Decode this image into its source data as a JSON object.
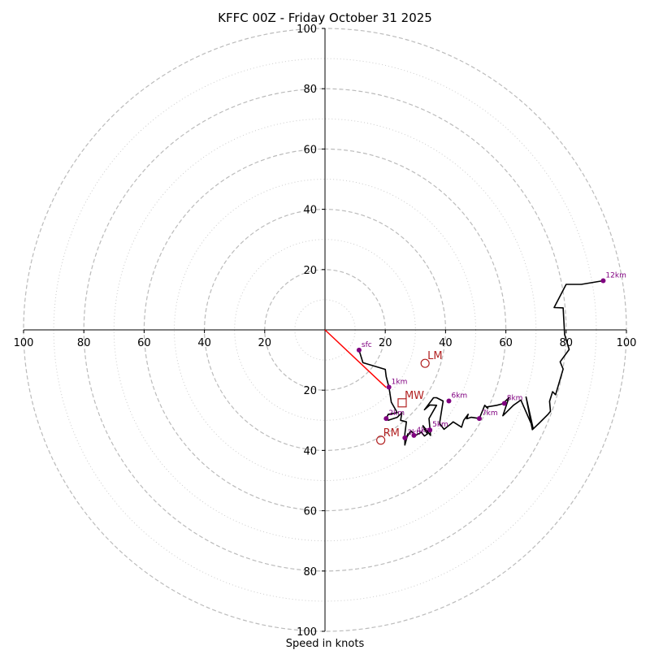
{
  "chart_data": {
    "type": "line",
    "title": "KFFC 00Z - Friday October 31 2025",
    "xlabel": "Speed in knots",
    "ylabel": "",
    "xlim": [
      -100,
      100
    ],
    "ylim": [
      -100,
      100
    ],
    "grid": true,
    "ring_major": [
      20,
      40,
      60,
      80,
      100
    ],
    "ring_minor": [
      10,
      30,
      50,
      70,
      90
    ],
    "x_ticks": [
      "100",
      "80",
      "60",
      "40",
      "20",
      "20",
      "40",
      "60",
      "80",
      "100"
    ],
    "x_tick_values": [
      -100,
      -80,
      -60,
      -40,
      -20,
      20,
      40,
      60,
      80,
      100
    ],
    "y_ticks": [
      "100",
      "80",
      "60",
      "40",
      "20",
      "20",
      "40",
      "60",
      "80",
      "100"
    ],
    "y_tick_values": [
      100,
      80,
      60,
      40,
      20,
      -20,
      -40,
      -60,
      -80,
      -100
    ],
    "colors": {
      "trace": "#000000",
      "height_marker": "#800080",
      "motion": "#b22222",
      "shear_line": "#ff0000",
      "grid": "#bbbbbb"
    },
    "series": [
      {
        "name": "hodograph",
        "x": [
          11.3,
          12.6,
          20,
          20.3,
          21.2,
          21.6,
          22,
          24,
          21,
          20.3,
          21,
          24,
          25.5,
          25.1,
          27,
          26.5,
          26.5,
          27.5,
          27,
          28.5,
          30,
          32,
          33,
          34,
          33,
          32.5,
          35,
          34.5,
          37,
          34.8,
          33,
          36,
          37,
          39.2,
          38,
          39.5,
          42,
          42.5,
          45.3,
          46,
          47.5,
          47,
          48.5,
          51.2,
          53,
          54,
          53.5,
          57,
          59,
          61,
          59,
          62.5,
          65,
          69,
          66.7,
          68.8,
          71,
          74,
          74.8,
          74.5,
          75.5,
          76.5,
          79,
          78,
          81,
          79.5,
          79,
          76,
          80,
          85,
          92.3
        ],
        "y": [
          -6.7,
          -10.9,
          -13.1,
          -15.5,
          -19,
          -21.4,
          -24,
          -27.5,
          -28,
          -29.4,
          -30,
          -29,
          -27.5,
          -30,
          -30.5,
          -34.5,
          -38.2,
          -34.5,
          -35.8,
          -33.5,
          -35,
          -34,
          -35.2,
          -34.5,
          -33,
          -31.8,
          -35,
          -29.4,
          -25,
          -24.9,
          -26.5,
          -22.5,
          -22.5,
          -23.6,
          -31,
          -33,
          -31,
          -30.5,
          -32.3,
          -30,
          -28,
          -29.5,
          -29,
          -29.4,
          -25,
          -26,
          -25.6,
          -25,
          -24.5,
          -22.5,
          -28.5,
          -25,
          -23.3,
          -32.5,
          -22.3,
          -33.1,
          -31,
          -28,
          -27,
          -23.7,
          -20.5,
          -21.5,
          -13,
          -10.6,
          -6.5,
          -1.5,
          7.3,
          7.4,
          15.1,
          15.1,
          16.3
        ]
      },
      {
        "name": "shear_vector",
        "x": [
          0,
          20.3
        ],
        "y": [
          0,
          -19.1
        ]
      }
    ],
    "height_points": [
      {
        "label": "sfc",
        "x": 11.3,
        "y": -6.7
      },
      {
        "label": "1km",
        "x": 21.2,
        "y": -19
      },
      {
        "label": "2km",
        "x": 20.3,
        "y": -29.4
      },
      {
        "label": "3km",
        "x": 26.5,
        "y": -35.8
      },
      {
        "label": "4km",
        "x": 29.5,
        "y": -35
      },
      {
        "label": "5km",
        "x": 34.8,
        "y": -33.2
      },
      {
        "label": "6km",
        "x": 41.1,
        "y": -23.6
      },
      {
        "label": "7km",
        "x": 51.2,
        "y": -29.4
      },
      {
        "label": "8km",
        "x": 59.5,
        "y": -24.4
      },
      {
        "label": "12km",
        "x": 92.3,
        "y": 16.3
      }
    ],
    "motion_markers": [
      {
        "label": "LM",
        "x": 33.2,
        "y": -11.1,
        "shape": "circle"
      },
      {
        "label": "MW",
        "x": 25.6,
        "y": -24.2,
        "shape": "square"
      },
      {
        "label": "RM",
        "x": 18.5,
        "y": -36.6,
        "shape": "circle"
      }
    ]
  }
}
